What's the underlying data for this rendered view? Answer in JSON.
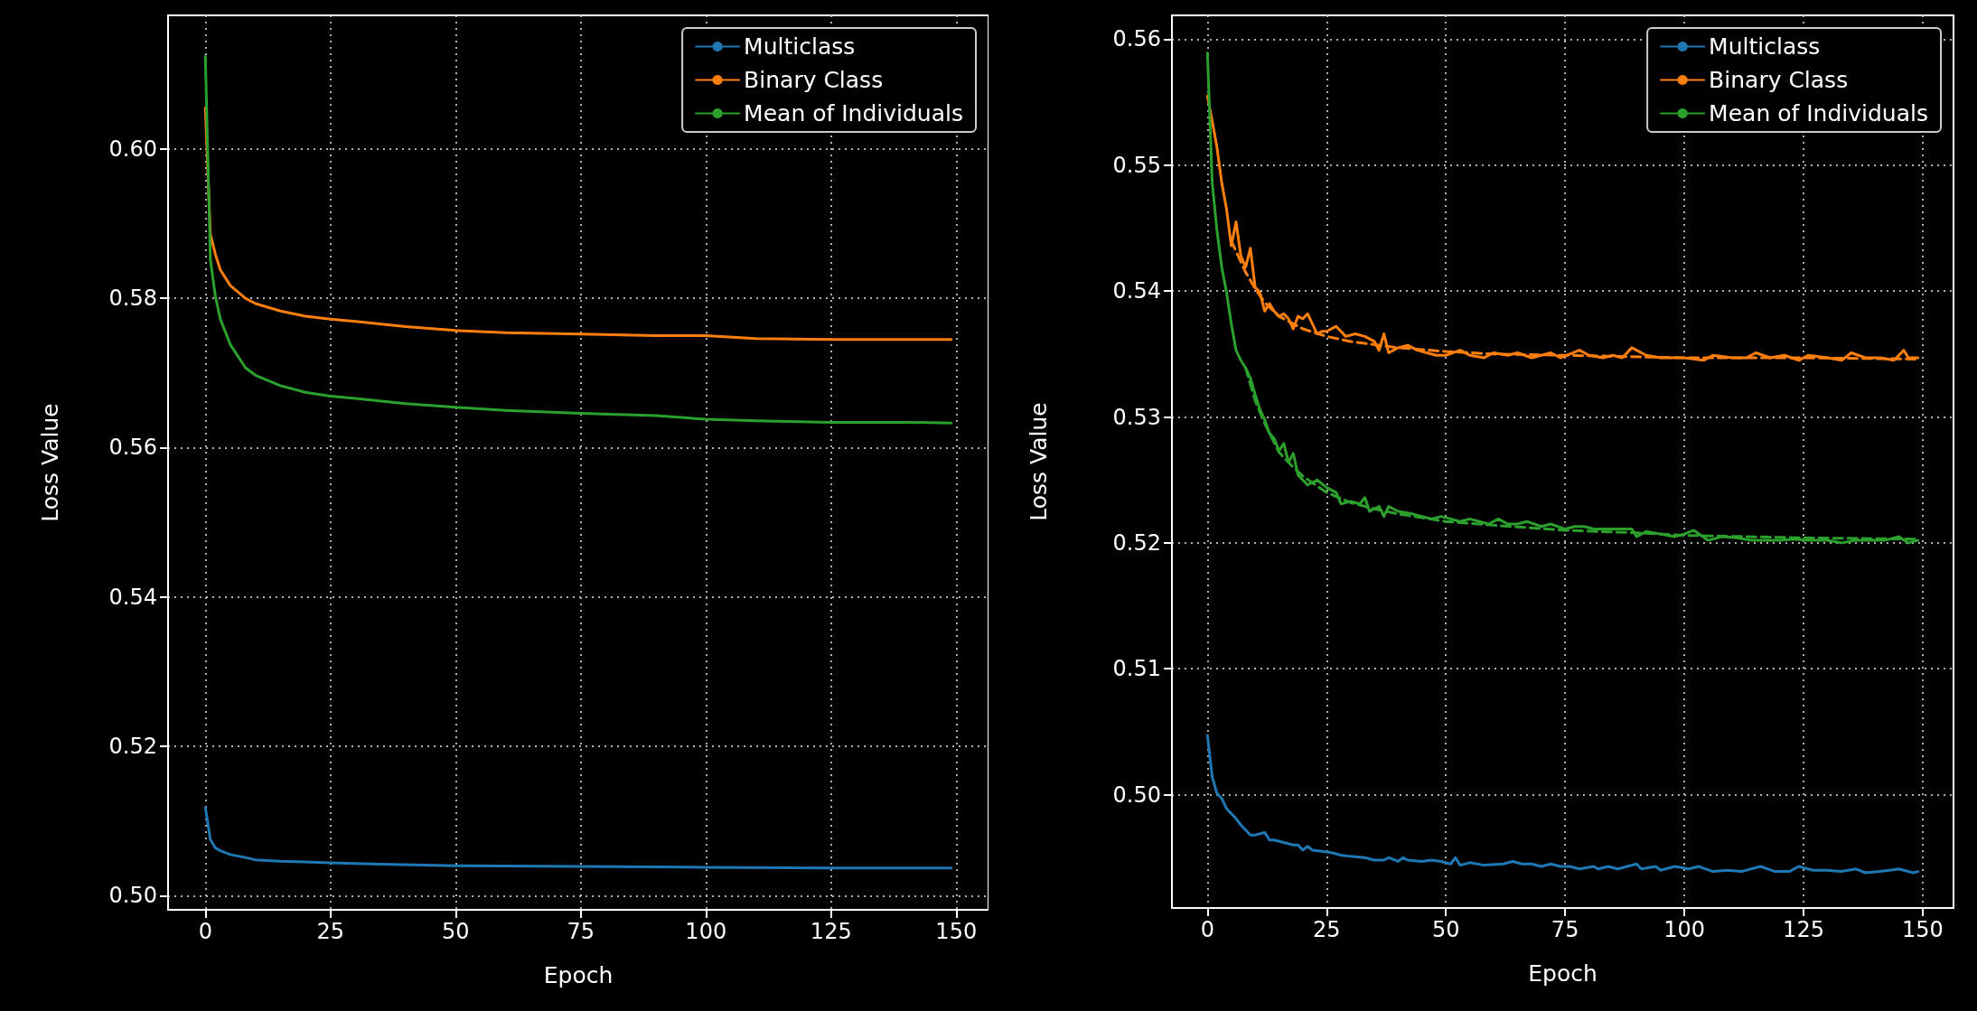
{
  "chart_data": [
    {
      "type": "line",
      "xlabel": "Epoch",
      "ylabel": "Loss Value",
      "xlim": [
        -7.45,
        156.45
      ],
      "ylim": [
        0.4981,
        0.6179
      ],
      "xticks": [
        0,
        25,
        50,
        75,
        100,
        125,
        150
      ],
      "yticks": [
        {
          "value": 0.5,
          "label": "0.50"
        },
        {
          "value": 0.52,
          "label": "0.52"
        },
        {
          "value": 0.54,
          "label": "0.54"
        },
        {
          "value": 0.56,
          "label": "0.56"
        },
        {
          "value": 0.58,
          "label": "0.58"
        },
        {
          "value": 0.6,
          "label": "0.60"
        }
      ],
      "grid": true,
      "legend": "top right",
      "series": [
        {
          "name": "Multiclass",
          "color": "#1f77b4",
          "x": [
            0,
            1,
            2,
            3,
            5,
            8,
            10,
            15,
            20,
            25,
            35,
            50,
            75,
            100,
            125,
            149
          ],
          "values": [
            0.5118,
            0.5075,
            0.5064,
            0.506,
            0.5055,
            0.5051,
            0.5048,
            0.5046,
            0.5045,
            0.5044,
            0.5042,
            0.504,
            0.5039,
            0.5038,
            0.5037,
            0.5037
          ]
        },
        {
          "name": "Binary Class",
          "color": "#ff7f0e",
          "x": [
            0,
            1,
            2,
            3,
            5,
            8,
            10,
            15,
            20,
            25,
            30,
            40,
            50,
            60,
            75,
            90,
            100,
            110,
            125,
            140,
            149
          ],
          "values": [
            0.6055,
            0.5886,
            0.5859,
            0.5838,
            0.5817,
            0.58,
            0.5793,
            0.5783,
            0.5776,
            0.5772,
            0.5769,
            0.5762,
            0.5757,
            0.5754,
            0.5752,
            0.575,
            0.575,
            0.5746,
            0.5745,
            0.5745,
            0.5745
          ]
        },
        {
          "name": "Mean of Individuals",
          "color": "#2ca02c",
          "x": [
            0,
            1,
            2,
            3,
            5,
            8,
            10,
            15,
            20,
            25,
            30,
            40,
            50,
            60,
            75,
            90,
            100,
            110,
            125,
            140,
            149
          ],
          "values": [
            0.6124,
            0.5852,
            0.5803,
            0.5772,
            0.5738,
            0.5707,
            0.5697,
            0.5683,
            0.5674,
            0.5669,
            0.5666,
            0.5659,
            0.5654,
            0.565,
            0.5646,
            0.5643,
            0.5638,
            0.5636,
            0.5634,
            0.5634,
            0.5633
          ]
        }
      ]
    },
    {
      "type": "line",
      "xlabel": "Epoch",
      "ylabel": "Loss Value",
      "xlim": [
        -7.45,
        156.45
      ],
      "ylim": [
        0.491,
        0.5619
      ],
      "xticks": [
        0,
        25,
        50,
        75,
        100,
        125,
        150
      ],
      "yticks": [
        {
          "value": 0.5,
          "label": "0.50"
        },
        {
          "value": 0.51,
          "label": "0.51"
        },
        {
          "value": 0.52,
          "label": "0.52"
        },
        {
          "value": 0.53,
          "label": "0.53"
        },
        {
          "value": 0.54,
          "label": "0.54"
        },
        {
          "value": 0.55,
          "label": "0.55"
        },
        {
          "value": 0.56,
          "label": "0.56"
        }
      ],
      "grid": true,
      "legend": "top right",
      "series": [
        {
          "name": "Multiclass",
          "color": "#1f77b4",
          "x": [
            0,
            1,
            2,
            3,
            4,
            5,
            6,
            7,
            9,
            10,
            12,
            13,
            14,
            16,
            18,
            19,
            20,
            21,
            22,
            24,
            26,
            28,
            30,
            33,
            35,
            37,
            38,
            40,
            41,
            42,
            45,
            47,
            49,
            51,
            52,
            53,
            55,
            58,
            62,
            64,
            66,
            68,
            70,
            72,
            74,
            76,
            78,
            81,
            82,
            84,
            86,
            90,
            91,
            94,
            95,
            98,
            101,
            103,
            106,
            109,
            112,
            114,
            116,
            119,
            122,
            124,
            127,
            130,
            133,
            136,
            138,
            141,
            143,
            145,
            148,
            149
          ],
          "values": [
            0.5047,
            0.5014,
            0.5001,
            0.4997,
            0.4989,
            0.4985,
            0.4981,
            0.4976,
            0.4968,
            0.4968,
            0.497,
            0.4964,
            0.4964,
            0.4962,
            0.496,
            0.496,
            0.4956,
            0.4959,
            0.4956,
            0.4955,
            0.4954,
            0.4952,
            0.4951,
            0.495,
            0.4948,
            0.4948,
            0.495,
            0.4947,
            0.495,
            0.4948,
            0.4947,
            0.4948,
            0.4947,
            0.4945,
            0.495,
            0.4944,
            0.4946,
            0.4944,
            0.4945,
            0.4947,
            0.4945,
            0.4945,
            0.4943,
            0.4945,
            0.4943,
            0.4943,
            0.4941,
            0.4943,
            0.4941,
            0.4943,
            0.4941,
            0.4945,
            0.4941,
            0.4943,
            0.494,
            0.4943,
            0.4941,
            0.4943,
            0.4939,
            0.494,
            0.4939,
            0.4941,
            0.4943,
            0.4939,
            0.4939,
            0.4943,
            0.494,
            0.494,
            0.4939,
            0.4941,
            0.4938,
            0.4939,
            0.494,
            0.4941,
            0.4938,
            0.4939
          ]
        },
        {
          "name": "Binary Class",
          "color": "#ff7f0e",
          "x": [
            0,
            1,
            2,
            3,
            4,
            5,
            6,
            7,
            8,
            9,
            10,
            11,
            12,
            13,
            14,
            15,
            16,
            17,
            18,
            19,
            20,
            21,
            22,
            23,
            24,
            25,
            27,
            29,
            31,
            33,
            35,
            36,
            37,
            38,
            40,
            42,
            44,
            46,
            48,
            50,
            53,
            55,
            58,
            60,
            63,
            65,
            68,
            70,
            72,
            74,
            78,
            80,
            83,
            85,
            87,
            89,
            92,
            95,
            100,
            104,
            106,
            110,
            113,
            115,
            118,
            121,
            124,
            126,
            130,
            133,
            135,
            138,
            141,
            144,
            146,
            147,
            149
          ],
          "values": [
            0.5555,
            0.5535,
            0.5514,
            0.5486,
            0.5465,
            0.5436,
            0.5455,
            0.5428,
            0.5419,
            0.5434,
            0.5403,
            0.5399,
            0.5384,
            0.539,
            0.5384,
            0.538,
            0.5382,
            0.5378,
            0.537,
            0.538,
            0.5378,
            0.5382,
            0.5374,
            0.5366,
            0.5368,
            0.5368,
            0.5372,
            0.5364,
            0.5366,
            0.5364,
            0.536,
            0.5353,
            0.5366,
            0.5351,
            0.5355,
            0.5357,
            0.5353,
            0.5351,
            0.5349,
            0.5349,
            0.5353,
            0.5349,
            0.5347,
            0.5351,
            0.5349,
            0.5351,
            0.5347,
            0.5349,
            0.5351,
            0.5347,
            0.5353,
            0.5349,
            0.5347,
            0.5349,
            0.5347,
            0.5355,
            0.5349,
            0.5347,
            0.5347,
            0.5345,
            0.5349,
            0.5347,
            0.5347,
            0.5351,
            0.5347,
            0.5349,
            0.5345,
            0.5349,
            0.5347,
            0.5345,
            0.5351,
            0.5347,
            0.5347,
            0.5345,
            0.5353,
            0.5347,
            0.5347
          ]
        },
        {
          "name": "Mean of Individuals",
          "color": "#2ca02c",
          "x": [
            0,
            1,
            2,
            3,
            4,
            5,
            6,
            7,
            8,
            9,
            10,
            11,
            12,
            13,
            14,
            15,
            16,
            17,
            18,
            19,
            20,
            21,
            22,
            23,
            25,
            27,
            28,
            30,
            32,
            33,
            34,
            36,
            37,
            38,
            40,
            43,
            45,
            47,
            49,
            51,
            53,
            55,
            57,
            59,
            61,
            63,
            65,
            67,
            70,
            72,
            75,
            77,
            79,
            81,
            83,
            85,
            87,
            89,
            90,
            92,
            95,
            98,
            100,
            102,
            105,
            108,
            111,
            114,
            117,
            120,
            123,
            126,
            130,
            133,
            136,
            139,
            142,
            145,
            147,
            149
          ],
          "values": [
            0.5589,
            0.5486,
            0.5448,
            0.5419,
            0.5399,
            0.5374,
            0.5353,
            0.5345,
            0.5339,
            0.5331,
            0.5318,
            0.5306,
            0.5298,
            0.5287,
            0.5283,
            0.5273,
            0.5279,
            0.5264,
            0.5271,
            0.5254,
            0.525,
            0.5246,
            0.5248,
            0.525,
            0.5244,
            0.524,
            0.5231,
            0.5233,
            0.5231,
            0.5236,
            0.5225,
            0.5229,
            0.5221,
            0.5229,
            0.5225,
            0.5223,
            0.5221,
            0.5219,
            0.5221,
            0.5219,
            0.5217,
            0.5219,
            0.5217,
            0.5215,
            0.5219,
            0.5215,
            0.5215,
            0.5217,
            0.5213,
            0.5215,
            0.5211,
            0.5213,
            0.5213,
            0.5211,
            0.5211,
            0.5211,
            0.5211,
            0.5211,
            0.5205,
            0.5209,
            0.5207,
            0.5205,
            0.5207,
            0.521,
            0.5202,
            0.5205,
            0.5204,
            0.5202,
            0.5202,
            0.5202,
            0.5203,
            0.5202,
            0.5202,
            0.52,
            0.5202,
            0.5202,
            0.5202,
            0.5205,
            0.52,
            0.5202
          ]
        },
        {
          "type": "line",
          "line_style": "dashed",
          "color": "#ff7f0e",
          "x": [
            5,
            8,
            10,
            12,
            15,
            20,
            25,
            30,
            40,
            50,
            60,
            75,
            100,
            125,
            149
          ],
          "values": [
            0.544,
            0.5415,
            0.5402,
            0.5391,
            0.538,
            0.537,
            0.5364,
            0.536,
            0.5355,
            0.5352,
            0.535,
            0.5349,
            0.5347,
            0.5347,
            0.5346
          ]
        },
        {
          "type": "line",
          "line_style": "dashed",
          "color": "#2ca02c",
          "x": [
            8,
            10,
            12,
            15,
            18,
            20,
            25,
            30,
            35,
            40,
            50,
            60,
            75,
            90,
            100,
            125,
            149
          ],
          "values": [
            0.5339,
            0.5313,
            0.5295,
            0.5272,
            0.526,
            0.5253,
            0.524,
            0.5232,
            0.5227,
            0.5223,
            0.5217,
            0.5214,
            0.521,
            0.5208,
            0.5206,
            0.5204,
            0.5203
          ]
        }
      ]
    }
  ]
}
